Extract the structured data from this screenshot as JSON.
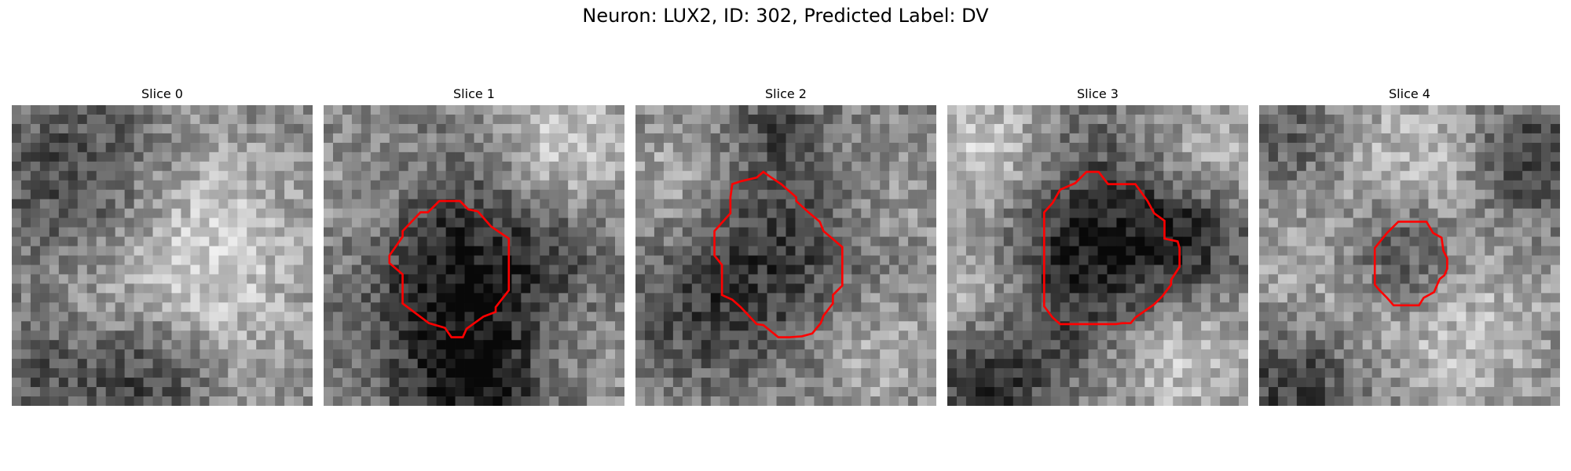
{
  "figure": {
    "title": "Neuron: LUX2, ID: 302, Predicted Label: DV"
  },
  "colors": {
    "contour": "#ff0000",
    "background": "#ffffff"
  },
  "slices": [
    {
      "title": "Slice 0",
      "has_contour": false
    },
    {
      "title": "Slice 1",
      "has_contour": true
    },
    {
      "title": "Slice 2",
      "has_contour": true
    },
    {
      "title": "Slice 3",
      "has_contour": true
    },
    {
      "title": "Slice 4",
      "has_contour": true
    }
  ]
}
